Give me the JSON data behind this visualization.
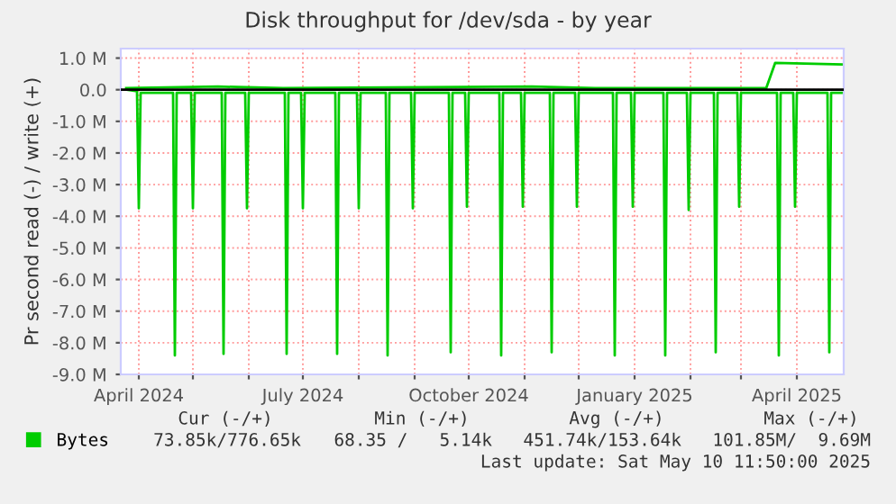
{
  "chart_data": {
    "type": "line",
    "title": "Disk throughput for /dev/sda - by year",
    "ylabel": "Pr second read (-) / write (+)",
    "xlim": [
      "2024-03-22",
      "2025-04-27"
    ],
    "xticks": [
      {
        "value": "2024-04-01",
        "label": "April 2024"
      },
      {
        "value": "2024-05-01",
        "label": null
      },
      {
        "value": "2024-06-01",
        "label": null
      },
      {
        "value": "2024-07-01",
        "label": "July 2024"
      },
      {
        "value": "2024-08-01",
        "label": null
      },
      {
        "value": "2024-09-01",
        "label": null
      },
      {
        "value": "2024-10-01",
        "label": "October 2024"
      },
      {
        "value": "2024-11-01",
        "label": null
      },
      {
        "value": "2024-12-01",
        "label": null
      },
      {
        "value": "2025-01-01",
        "label": "January 2025"
      },
      {
        "value": "2025-02-01",
        "label": null
      },
      {
        "value": "2025-03-01",
        "label": null
      },
      {
        "value": "2025-04-01",
        "label": "April 2025"
      }
    ],
    "ylim": [
      -9,
      1.3
    ],
    "yticks": [
      {
        "value": 1,
        "label": "1.0 M"
      },
      {
        "value": 0,
        "label": "0.0"
      },
      {
        "value": -1,
        "label": "-1.0 M"
      },
      {
        "value": -2,
        "label": "-2.0 M"
      },
      {
        "value": -3,
        "label": "-3.0 M"
      },
      {
        "value": -4,
        "label": "-4.0 M"
      },
      {
        "value": -5,
        "label": "-5.0 M"
      },
      {
        "value": -6,
        "label": "-6.0 M"
      },
      {
        "value": -7,
        "label": "-7.0 M"
      },
      {
        "value": -8,
        "label": "-8.0 M"
      },
      {
        "value": -9,
        "label": "-9.0 M"
      }
    ],
    "grid": true,
    "legend": "bottom left",
    "ref_lines": [
      {
        "axis": "y",
        "value": 0,
        "color": "#000000"
      }
    ],
    "series": [
      {
        "name": "Bytes",
        "color": "#00cc00",
        "x": [
          "2024-03-25",
          "2024-03-31",
          "2024-04-01",
          "2024-04-02",
          "2024-04-20",
          "2024-04-21",
          "2024-04-22",
          "2024-04-30",
          "2024-05-01",
          "2024-05-02",
          "2024-05-17",
          "2024-05-18",
          "2024-05-19",
          "2024-05-30",
          "2024-05-31",
          "2024-06-01",
          "2024-06-21",
          "2024-06-22",
          "2024-06-23",
          "2024-06-30",
          "2024-07-01",
          "2024-07-02",
          "2024-07-19",
          "2024-07-20",
          "2024-07-21",
          "2024-07-31",
          "2024-08-01",
          "2024-08-02",
          "2024-08-16",
          "2024-08-17",
          "2024-08-18",
          "2024-08-30",
          "2024-08-31",
          "2024-09-01",
          "2024-09-20",
          "2024-09-21",
          "2024-09-22",
          "2024-09-29",
          "2024-09-30",
          "2024-10-01",
          "2024-10-18",
          "2024-10-19",
          "2024-10-20",
          "2024-10-30",
          "2024-10-31",
          "2024-11-01",
          "2024-11-15",
          "2024-11-16",
          "2024-11-17",
          "2024-11-29",
          "2024-11-30",
          "2024-12-01",
          "2024-12-20",
          "2024-12-21",
          "2024-12-22",
          "2024-12-30",
          "2024-12-31",
          "2025-01-01",
          "2025-01-17",
          "2025-01-18",
          "2025-01-19",
          "2025-01-30",
          "2025-01-31",
          "2025-02-01",
          "2025-02-14",
          "2025-02-15",
          "2025-02-16",
          "2025-02-27",
          "2025-02-28",
          "2025-03-01",
          "2025-03-21",
          "2025-03-22",
          "2025-03-23",
          "2025-03-30",
          "2025-03-31",
          "2025-04-01",
          "2025-04-18",
          "2025-04-19",
          "2025-04-20",
          "2025-04-26"
        ],
        "values": [
          0.0,
          -0.05,
          -3.75,
          -0.1,
          -0.1,
          -8.4,
          -0.1,
          -0.1,
          -3.75,
          -0.1,
          -0.1,
          -8.35,
          -0.1,
          -0.1,
          -3.75,
          -0.1,
          -0.1,
          -8.35,
          -0.1,
          -0.1,
          -3.75,
          -0.1,
          -0.1,
          -8.35,
          -0.1,
          -0.1,
          -3.75,
          -0.1,
          -0.1,
          -8.4,
          -0.1,
          -0.1,
          -3.75,
          -0.1,
          -0.1,
          -8.3,
          -0.1,
          -0.1,
          -3.7,
          -0.1,
          -0.1,
          -8.4,
          -0.1,
          -0.1,
          -3.7,
          -0.1,
          -0.1,
          -8.3,
          -0.1,
          -0.1,
          -3.7,
          -0.1,
          -0.1,
          -8.4,
          -0.1,
          -0.1,
          -3.7,
          -0.1,
          -0.1,
          -8.4,
          -0.1,
          -0.1,
          -3.8,
          -0.1,
          -0.1,
          -8.3,
          -0.1,
          -0.1,
          -3.7,
          -0.1,
          -0.1,
          -8.4,
          -0.1,
          -0.1,
          -3.7,
          -0.1,
          -0.1,
          -8.3,
          -0.1,
          -0.1
        ]
      },
      {
        "color": "#00cc00",
        "x": [
          "2024-03-25",
          "2024-05-15",
          "2024-06-20",
          "2024-11-05",
          "2024-12-10",
          "2025-01-20",
          "2025-03-15",
          "2025-03-20",
          "2025-04-26"
        ],
        "values": [
          0.05,
          0.1,
          0.05,
          0.1,
          0.05,
          0.05,
          0.05,
          0.85,
          0.8
        ]
      }
    ],
    "annotations": [
      "Cur (-/+)",
      "Min (-/+)",
      "Avg (-/+)",
      "Max (-/+)",
      "73.85k/776.65k",
      "68.35 /   5.14k",
      "451.74k/153.64k",
      "101.85M/  9.69M",
      "Last update: Sat May 10 11:50:00 2025"
    ]
  }
}
